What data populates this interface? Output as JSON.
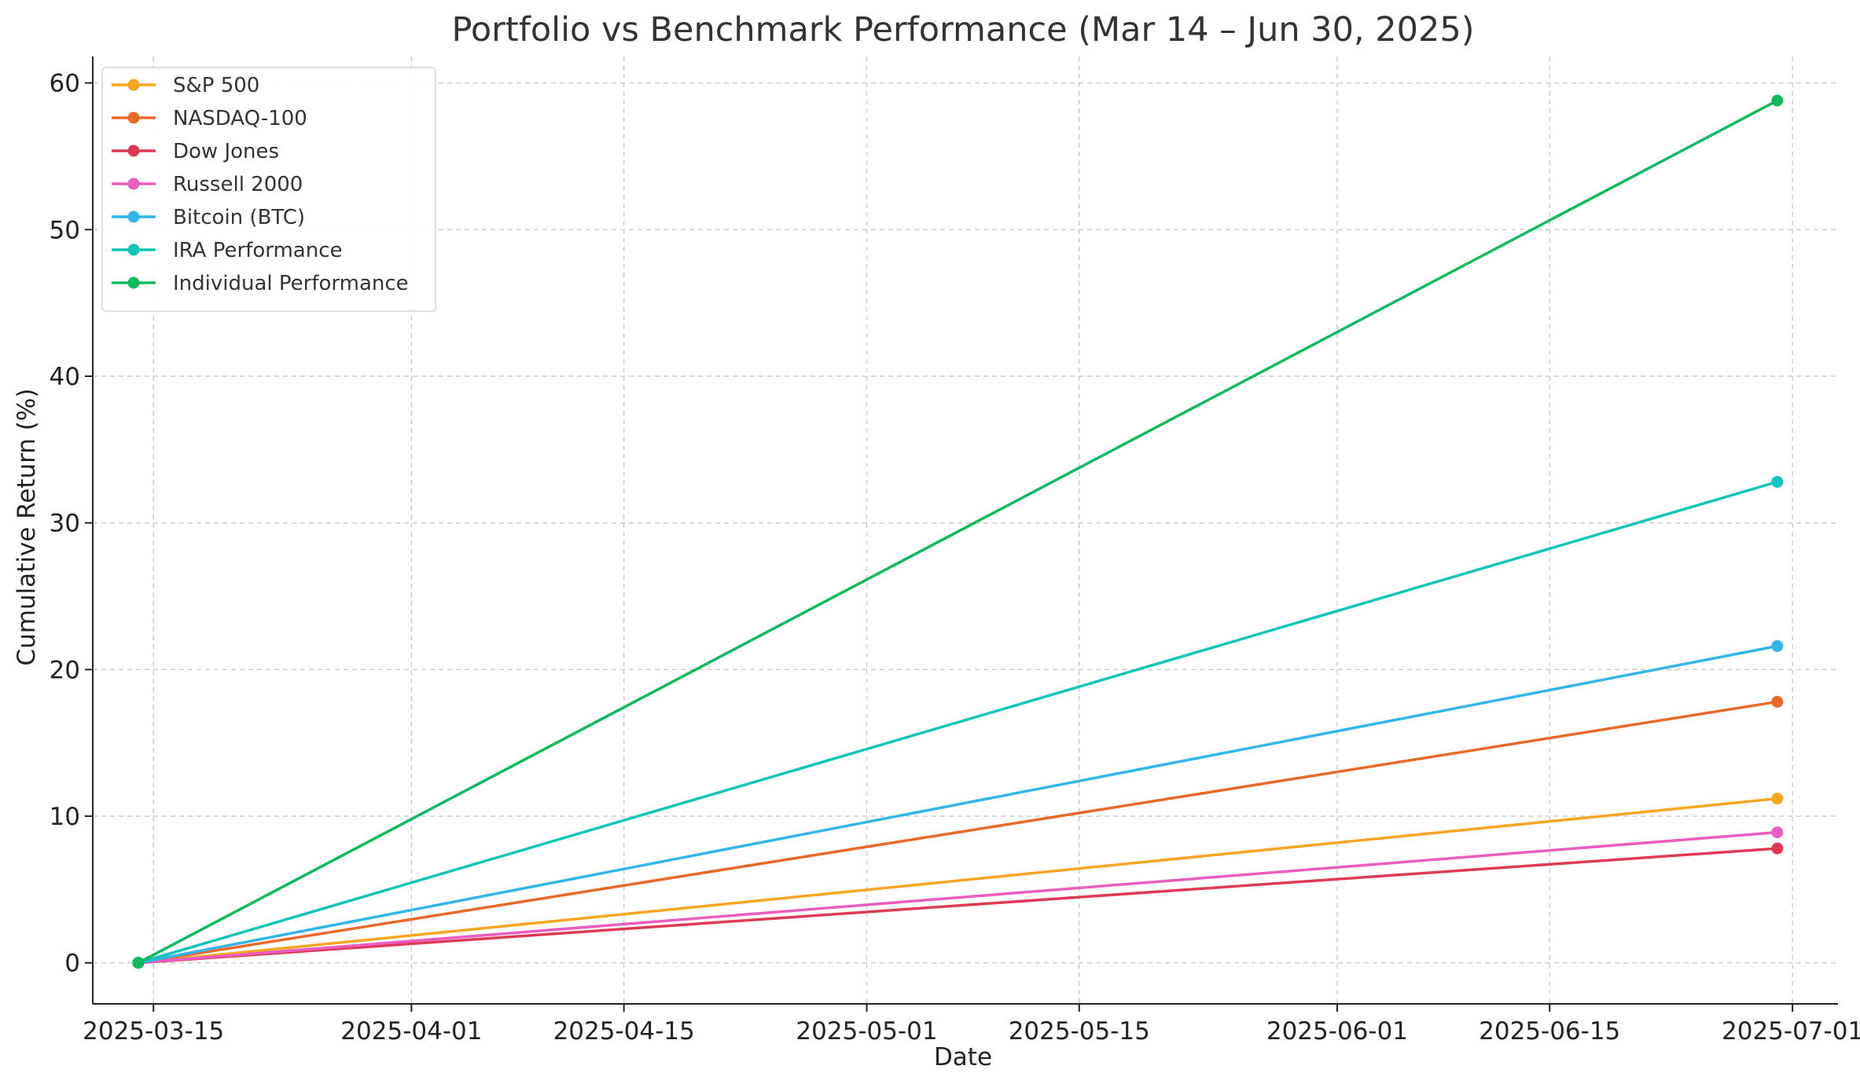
{
  "chart_data": {
    "type": "line",
    "title": "Portfolio vs Benchmark Performance (Mar 14 – Jun 30, 2025)",
    "xlabel": "Date",
    "ylabel": "Cumulative Return (%)",
    "x": [
      "2025-03-14",
      "2025-06-30"
    ],
    "xlim": [
      "2025-03-11",
      "2025-07-04"
    ],
    "ylim": [
      -2.8,
      61.8
    ],
    "x_ticks": [
      "2025-03-15",
      "2025-04-01",
      "2025-04-15",
      "2025-05-01",
      "2025-05-15",
      "2025-06-01",
      "2025-06-15",
      "2025-07-01"
    ],
    "y_ticks": [
      0,
      10,
      20,
      30,
      40,
      50,
      60
    ],
    "grid": true,
    "legend_position": "top-left",
    "series": [
      {
        "name": "S&P 500",
        "color": "#F5A623",
        "values": [
          0,
          11.2
        ]
      },
      {
        "name": "NASDAQ-100",
        "color": "#E8692A",
        "values": [
          0,
          17.8
        ]
      },
      {
        "name": "Dow Jones",
        "color": "#DC3A55",
        "values": [
          0,
          7.8
        ]
      },
      {
        "name": "Russell 2000",
        "color": "#E85DBF",
        "values": [
          0,
          8.9
        ]
      },
      {
        "name": "Bitcoin (BTC)",
        "color": "#33B5EA",
        "values": [
          0,
          21.6
        ]
      },
      {
        "name": "IRA Performance",
        "color": "#14C4B8",
        "values": [
          0,
          32.8
        ]
      },
      {
        "name": "Individual Performance",
        "color": "#10B860",
        "values": [
          0,
          58.8
        ]
      }
    ]
  }
}
